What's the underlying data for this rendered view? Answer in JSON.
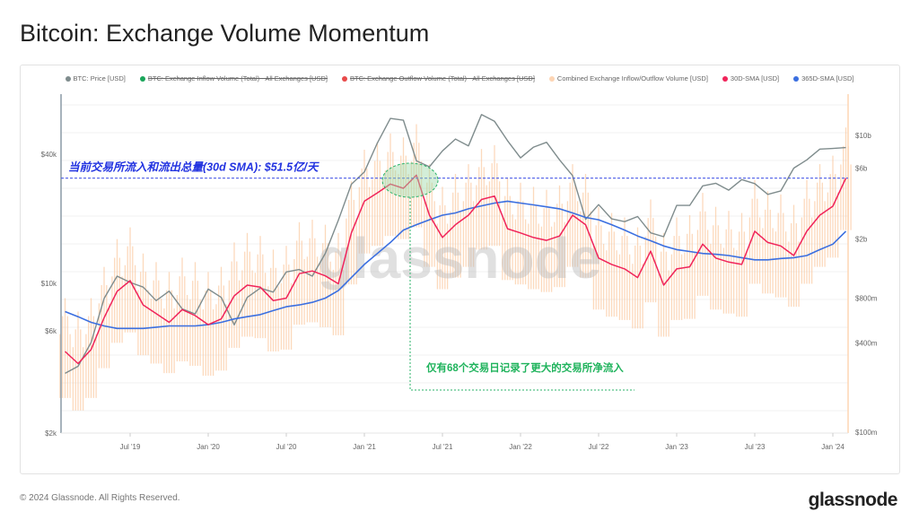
{
  "title": "Bitcoin: Exchange Volume Momentum",
  "footer": "© 2024 Glassnode. All Rights Reserved.",
  "logo": "glassnode",
  "watermark": "glassnode",
  "legend": [
    {
      "label": "BTC: Price [USD]",
      "color": "#7f8c8d",
      "disabled": false
    },
    {
      "label": "BTC: Exchange Inflow Volume (Total) - All Exchanges [USD]",
      "color": "#1aa55a",
      "disabled": true
    },
    {
      "label": "BTC: Exchange Outflow Volume (Total) - All Exchanges [USD]",
      "color": "#e84a4a",
      "disabled": true
    },
    {
      "label": "Combined Exchange Inflow/Outflow Volume [USD]",
      "color": "#fdd5b4",
      "disabled": false
    },
    {
      "label": "30D-SMA [USD]",
      "color": "#f0245a",
      "disabled": false
    },
    {
      "label": "365D-SMA [USD]",
      "color": "#3b6fe0",
      "disabled": false
    }
  ],
  "annotations": {
    "current_level": "当前交易所流入和流出总量(30d SMA): $51.5亿/天",
    "current_level_value_usd_b": 5.15,
    "days_note": "仅有68个交易日记录了更大的交易所净流入"
  },
  "chart_data": {
    "type": "line",
    "x_ticks": [
      "Jul '19",
      "Jan '20",
      "Jul '20",
      "Jan '21",
      "Jul '21",
      "Jan '22",
      "Jul '22",
      "Jan '23",
      "Jul '23",
      "Jan '24"
    ],
    "y_left": {
      "scale": "log",
      "ticks": [
        "$2k",
        "$6k",
        "$10k",
        "$40k"
      ],
      "tick_values": [
        2000,
        6000,
        10000,
        40000
      ],
      "range": [
        2000,
        80000
      ]
    },
    "y_right": {
      "scale": "log",
      "ticks": [
        "$100m",
        "$400m",
        "$800m",
        "$2b",
        "$6b",
        "$10b"
      ],
      "tick_values_b": [
        0.1,
        0.4,
        0.8,
        2,
        6,
        10
      ],
      "range_b": [
        0.1,
        20
      ]
    },
    "x_start": "2019-02",
    "x_end": "2024-02",
    "x_step": "month",
    "grid": true,
    "legend_position": "top",
    "series": [
      {
        "name": "BTC: Price [USD]",
        "axis": "left",
        "unit": "USD k",
        "values": [
          3.8,
          4.1,
          5.3,
          8.5,
          10.8,
          10.1,
          9.6,
          8.3,
          9.2,
          7.6,
          7.2,
          9.4,
          8.6,
          6.4,
          8.6,
          9.5,
          9.1,
          11.3,
          11.6,
          10.8,
          13.8,
          19.7,
          29.0,
          33.1,
          45.2,
          58.8,
          57.7,
          37.3,
          35.0,
          41.5,
          47.1,
          43.8,
          61.3,
          57.0,
          46.3,
          38.5,
          43.2,
          45.5,
          37.7,
          31.8,
          19.9,
          23.3,
          20.0,
          19.4,
          20.5,
          17.2,
          16.5,
          23.1,
          23.1,
          28.5,
          29.3,
          27.2,
          30.5,
          29.2,
          26.0,
          27.0,
          34.5,
          37.7,
          42.3,
          42.6,
          43.0
        ]
      },
      {
        "name": "30D-SMA [USD]",
        "axis": "right",
        "unit": "USD b",
        "values": [
          0.35,
          0.29,
          0.36,
          0.59,
          0.89,
          1.05,
          0.72,
          0.63,
          0.55,
          0.67,
          0.61,
          0.53,
          0.58,
          0.83,
          0.98,
          0.95,
          0.77,
          0.8,
          1.17,
          1.22,
          1.13,
          1.0,
          2.2,
          3.6,
          4.1,
          4.7,
          4.4,
          5.4,
          2.9,
          2.05,
          2.5,
          2.9,
          3.7,
          3.9,
          2.35,
          2.2,
          2.05,
          1.96,
          2.1,
          2.9,
          2.5,
          1.49,
          1.35,
          1.26,
          1.1,
          1.66,
          0.98,
          1.26,
          1.3,
          1.85,
          1.49,
          1.4,
          1.35,
          2.26,
          1.9,
          1.8,
          1.55,
          2.26,
          2.9,
          3.33,
          5.15
        ]
      },
      {
        "name": "365D-SMA [USD]",
        "axis": "right",
        "unit": "USD b",
        "values": [
          0.65,
          0.6,
          0.55,
          0.52,
          0.5,
          0.5,
          0.5,
          0.51,
          0.52,
          0.52,
          0.52,
          0.53,
          0.55,
          0.58,
          0.6,
          0.62,
          0.66,
          0.7,
          0.72,
          0.75,
          0.8,
          0.9,
          1.1,
          1.35,
          1.6,
          1.9,
          2.3,
          2.5,
          2.7,
          2.9,
          3.0,
          3.2,
          3.35,
          3.5,
          3.6,
          3.5,
          3.4,
          3.3,
          3.2,
          3.0,
          2.8,
          2.7,
          2.5,
          2.3,
          2.1,
          1.95,
          1.8,
          1.7,
          1.65,
          1.6,
          1.58,
          1.55,
          1.5,
          1.45,
          1.45,
          1.48,
          1.5,
          1.55,
          1.7,
          1.85,
          2.26
        ]
      },
      {
        "name": "Combined Exchange Inflow/Outflow Volume [USD]",
        "axis": "right",
        "unit": "USD b",
        "kind": "range-bars",
        "low": [
          0.17,
          0.14,
          0.17,
          0.27,
          0.4,
          0.47,
          0.33,
          0.29,
          0.25,
          0.3,
          0.28,
          0.24,
          0.26,
          0.37,
          0.44,
          0.43,
          0.35,
          0.36,
          0.53,
          0.55,
          0.51,
          0.45,
          0.99,
          1.6,
          1.8,
          2.1,
          2.0,
          2.4,
          1.3,
          0.92,
          1.1,
          1.3,
          1.7,
          1.8,
          1.06,
          0.99,
          0.92,
          0.88,
          0.95,
          1.3,
          1.1,
          0.67,
          0.6,
          0.57,
          0.5,
          0.75,
          0.44,
          0.57,
          0.58,
          0.83,
          0.67,
          0.63,
          0.6,
          1.0,
          0.86,
          0.81,
          0.7,
          1.0,
          1.3,
          1.5,
          2.3
        ],
        "high": [
          0.8,
          0.65,
          0.8,
          1.3,
          2.0,
          2.4,
          1.6,
          1.4,
          1.2,
          1.5,
          1.4,
          1.2,
          1.3,
          1.9,
          2.2,
          2.1,
          1.7,
          1.8,
          2.6,
          2.7,
          2.5,
          2.2,
          4.9,
          8.0,
          9.0,
          10.3,
          9.7,
          11.9,
          6.4,
          4.5,
          5.5,
          6.4,
          8.1,
          8.6,
          5.2,
          4.8,
          4.5,
          4.3,
          4.6,
          6.4,
          5.5,
          3.3,
          3.0,
          2.8,
          2.4,
          3.7,
          2.2,
          2.8,
          2.9,
          4.1,
          3.3,
          3.1,
          3.0,
          5.0,
          4.2,
          4.0,
          3.4,
          5.0,
          6.4,
          7.3,
          11.3
        ]
      }
    ]
  }
}
